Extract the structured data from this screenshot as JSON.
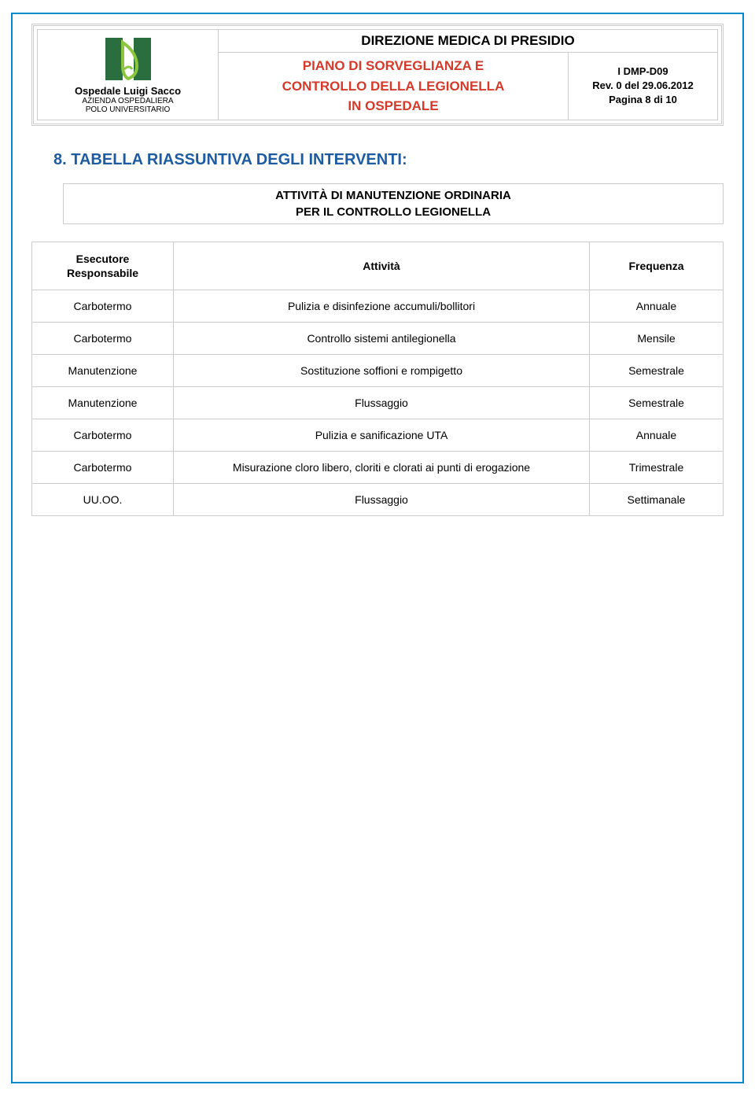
{
  "colors": {
    "page_border": "#008aca",
    "cell_border": "#cccccc",
    "link_blue": "#1d5ca2",
    "red_title": "#d43a2a",
    "logo_green_dark": "#2a6e3f",
    "logo_green_light": "#8cc63f",
    "text": "#000000",
    "background": "#ffffff"
  },
  "header": {
    "org_name": "Ospedale Luigi Sacco",
    "org_sub1": "AZIENDA OSPEDALIERA",
    "org_sub2": "POLO UNIVERSITARIO",
    "title_row1": "DIREZIONE MEDICA DI PRESIDIO",
    "title_row2": "PIANO DI SORVEGLIANZA E CONTROLLO DELLA LEGIONELLA IN OSPEDALE",
    "doc_code": "I DMP-D09",
    "doc_rev": "Rev. 0 del 29.06.2012",
    "doc_page": "Pagina 8 di 10"
  },
  "section": {
    "title": "8. TABELLA RIASSUNTIVA DEGLI INTERVENTI:",
    "subtitle_line1": "ATTIVITÀ DI MANUTENZIONE ORDINARIA",
    "subtitle_line2": "PER IL CONTROLLO LEGIONELLA"
  },
  "table": {
    "columns": {
      "executor": "Esecutore Responsabile",
      "activity": "Attività",
      "frequency": "Frequenza"
    },
    "rows": [
      {
        "executor": "Carbotermo",
        "activity": "Pulizia e disinfezione accumuli/bollitori",
        "frequency": "Annuale"
      },
      {
        "executor": "Carbotermo",
        "activity": "Controllo sistemi antilegionella",
        "frequency": "Mensile"
      },
      {
        "executor": "Manutenzione",
        "activity": "Sostituzione soffioni e rompigetto",
        "frequency": "Semestrale"
      },
      {
        "executor": "Manutenzione",
        "activity": "Flussaggio",
        "frequency": "Semestrale"
      },
      {
        "executor": "Carbotermo",
        "activity": "Pulizia e sanificazione UTA",
        "frequency": "Annuale"
      },
      {
        "executor": "Carbotermo",
        "activity": "Misurazione cloro libero, cloriti e clorati ai punti di erogazione",
        "frequency": "Trimestrale"
      },
      {
        "executor": "UU.OO.",
        "activity": "Flussaggio",
        "frequency": "Settimanale"
      }
    ]
  }
}
